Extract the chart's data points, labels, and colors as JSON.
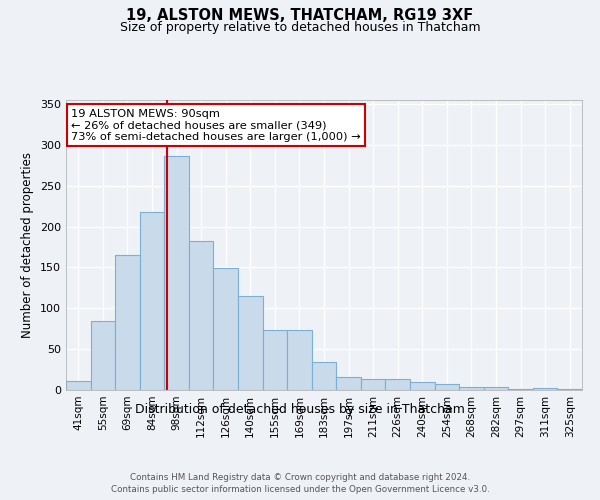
{
  "title_line1": "19, ALSTON MEWS, THATCHAM, RG19 3XF",
  "title_line2": "Size of property relative to detached houses in Thatcham",
  "xlabel": "Distribution of detached houses by size in Thatcham",
  "ylabel": "Number of detached properties",
  "bar_color": "#c9daea",
  "bar_edge_color": "#7bafd4",
  "categories": [
    "41sqm",
    "55sqm",
    "69sqm",
    "84sqm",
    "98sqm",
    "112sqm",
    "126sqm",
    "140sqm",
    "155sqm",
    "169sqm",
    "183sqm",
    "197sqm",
    "211sqm",
    "226sqm",
    "240sqm",
    "254sqm",
    "268sqm",
    "282sqm",
    "297sqm",
    "311sqm",
    "325sqm"
  ],
  "values": [
    11,
    84,
    165,
    218,
    287,
    182,
    149,
    115,
    74,
    74,
    34,
    16,
    14,
    13,
    10,
    7,
    4,
    4,
    1,
    2,
    1
  ],
  "vline_position": 3.62,
  "vline_color": "#cc0000",
  "annotation_text": "19 ALSTON MEWS: 90sqm\n← 26% of detached houses are smaller (349)\n73% of semi-detached houses are larger (1,000) →",
  "annotation_box_color": "#ffffff",
  "annotation_box_edge_color": "#cc0000",
  "ylim": [
    0,
    355
  ],
  "yticks": [
    0,
    50,
    100,
    150,
    200,
    250,
    300,
    350
  ],
  "footer_line1": "Contains HM Land Registry data © Crown copyright and database right 2024.",
  "footer_line2": "Contains public sector information licensed under the Open Government Licence v3.0.",
  "background_color": "#eef2f7",
  "grid_color": "#ffffff"
}
